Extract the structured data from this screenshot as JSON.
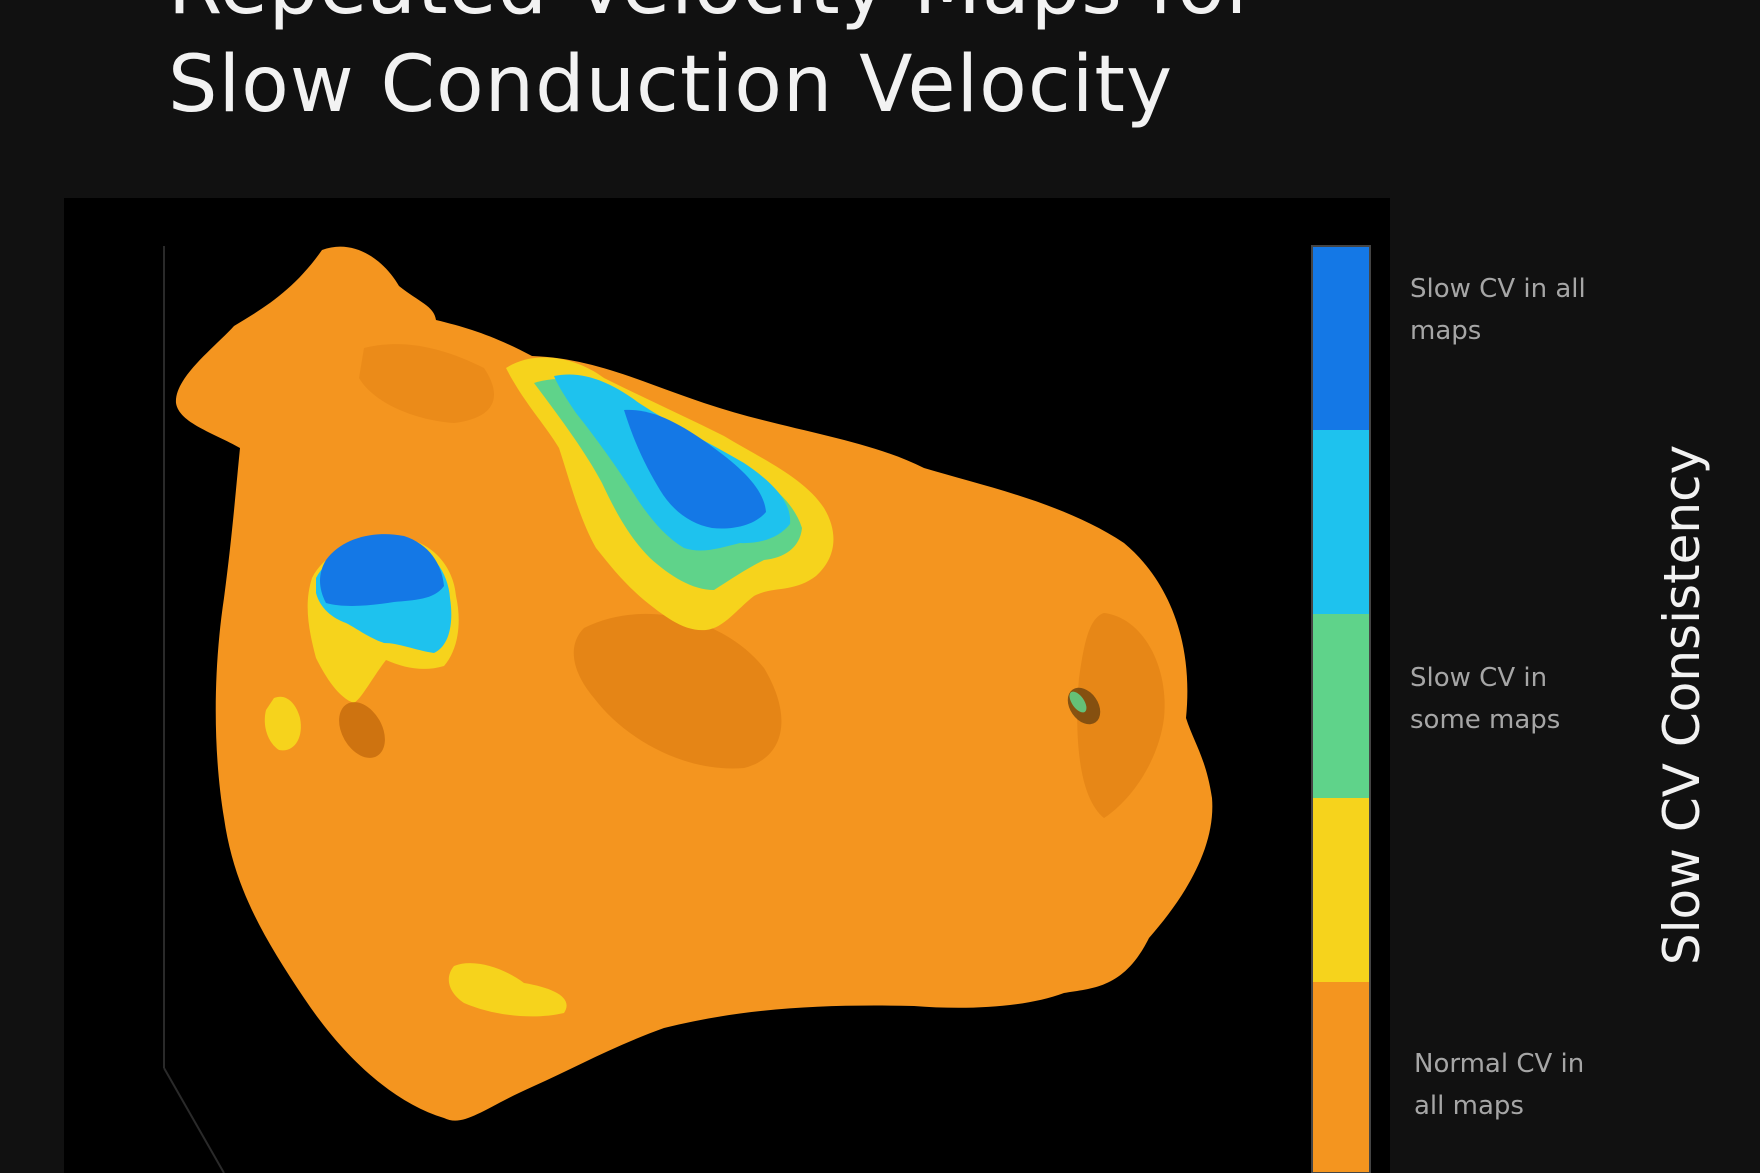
{
  "slide": {
    "title_partial": "Repeated Velocity Maps for",
    "title": "Slow Conduction Velocity"
  },
  "legend": {
    "axis_label": "Slow CV Consistency",
    "labels": {
      "slow_all": "Slow CV in all maps",
      "slow_some": "Slow CV in some maps",
      "normal": "Normal CV in all maps"
    },
    "colors": {
      "slow_all": "#1478e6",
      "slow_cv": "#1ec2ee",
      "slow_some": "#5fd38a",
      "transition": "#f6d31c",
      "normal": "#f4951f"
    }
  },
  "map": {
    "tissue_color": "#f4951f",
    "shadow_color": "#d9790f"
  }
}
